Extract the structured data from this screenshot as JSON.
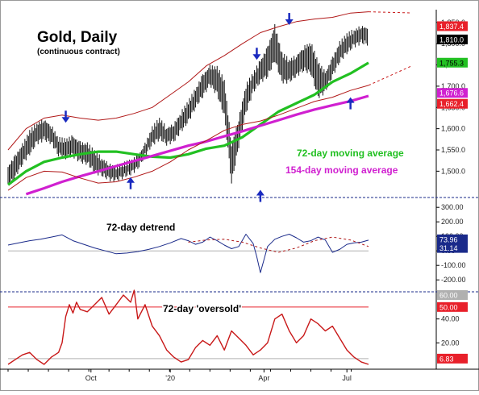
{
  "chart_data": [
    {
      "type": "line",
      "panel": "price",
      "title": "Gold, Daily",
      "subtitle": "(continuous contract)",
      "xlabel": "",
      "ylabel": "",
      "x_tick_labels": [
        "Oct",
        "'20",
        "Apr",
        "Jul"
      ],
      "y_ticks": [
        1500,
        1550,
        1600,
        1650,
        1700,
        1750,
        1800,
        1850
      ],
      "y_tick_labels": [
        "1,500.0",
        "1,550.0",
        "1,600.0",
        "1,650.0",
        "1,700.0",
        "1,750.0",
        "1,800.0",
        "1,850.0"
      ],
      "ylim": [
        1440,
        1880
      ],
      "grid": false,
      "value_badges": [
        {
          "text": "1,837.4",
          "value": 1837.4,
          "color": "#e8202a"
        },
        {
          "text": "1,810.0",
          "value": 1810.0,
          "color": "#000000"
        },
        {
          "text": "1,755.3",
          "value": 1755.3,
          "color": "#22c022"
        },
        {
          "text": "1,676.6",
          "value": 1676.6,
          "color": "#d020d0"
        },
        {
          "text": "1,662.4",
          "value": 1662.4,
          "color": "#e8202a"
        }
      ],
      "annotations": [
        {
          "text": "72-day moving average",
          "color": "#22c022"
        },
        {
          "text": "154-day moving average",
          "color": "#d020d0"
        }
      ],
      "series": [
        {
          "name": "72-day moving average",
          "color": "#22c022",
          "x": [
            0,
            5,
            10,
            15,
            20,
            25,
            30,
            35,
            40,
            45,
            50,
            55,
            60,
            65,
            70,
            75,
            80,
            85,
            90,
            95,
            100
          ],
          "values": [
            1468,
            1500,
            1522,
            1532,
            1540,
            1546,
            1546,
            1540,
            1534,
            1532,
            1540,
            1553,
            1560,
            1580,
            1610,
            1640,
            1660,
            1680,
            1710,
            1730,
            1755
          ]
        },
        {
          "name": "154-day moving average",
          "color": "#d020d0",
          "x": [
            5,
            10,
            15,
            20,
            25,
            30,
            35,
            40,
            45,
            50,
            55,
            60,
            65,
            70,
            75,
            80,
            85,
            90,
            95,
            100
          ],
          "values": [
            1446,
            1460,
            1475,
            1488,
            1500,
            1512,
            1524,
            1536,
            1548,
            1560,
            1570,
            1582,
            1594,
            1607,
            1620,
            1633,
            1645,
            1655,
            1665,
            1677
          ]
        },
        {
          "name": "Upper band",
          "color": "#b01818",
          "x": [
            0,
            5,
            10,
            15,
            20,
            25,
            30,
            35,
            40,
            45,
            50,
            55,
            60,
            65,
            70,
            75,
            80,
            85,
            90,
            95,
            100
          ],
          "values": [
            1550,
            1600,
            1625,
            1632,
            1625,
            1620,
            1625,
            1636,
            1650,
            1680,
            1710,
            1748,
            1772,
            1800,
            1826,
            1840,
            1852,
            1858,
            1862,
            1872,
            1875
          ]
        },
        {
          "name": "Lower band",
          "color": "#b01818",
          "x": [
            0,
            5,
            10,
            15,
            20,
            25,
            30,
            35,
            40,
            45,
            50,
            55,
            60,
            65,
            70,
            75,
            80,
            85,
            90,
            95,
            100
          ],
          "values": [
            1455,
            1485,
            1500,
            1498,
            1484,
            1472,
            1475,
            1486,
            1500,
            1522,
            1550,
            1572,
            1596,
            1610,
            1618,
            1632,
            1648,
            1664,
            1674,
            1690,
            1702
          ]
        }
      ],
      "price_hl": {
        "x": [
          0,
          2,
          4,
          6,
          8,
          10,
          12,
          14,
          16,
          18,
          20,
          22,
          24,
          26,
          28,
          30,
          32,
          34,
          36,
          38,
          40,
          42,
          44,
          46,
          48,
          50,
          52,
          54,
          56,
          58,
          60,
          62,
          64,
          66,
          68,
          70,
          72,
          74,
          76,
          78,
          80,
          82,
          84,
          86,
          88,
          90,
          92,
          94,
          96,
          98,
          100
        ],
        "high": [
          1510,
          1535,
          1560,
          1592,
          1610,
          1620,
          1605,
          1575,
          1572,
          1580,
          1566,
          1562,
          1545,
          1528,
          1516,
          1510,
          1516,
          1522,
          1535,
          1562,
          1600,
          1622,
          1600,
          1610,
          1636,
          1662,
          1690,
          1725,
          1745,
          1742,
          1712,
          1560,
          1622,
          1700,
          1728,
          1758,
          1790,
          1840,
          1775,
          1760,
          1770,
          1790,
          1800,
          1755,
          1730,
          1765,
          1800,
          1820,
          1830,
          1840,
          1835
        ],
        "low": [
          1465,
          1488,
          1520,
          1542,
          1568,
          1576,
          1568,
          1540,
          1532,
          1538,
          1524,
          1520,
          1500,
          1492,
          1482,
          1480,
          1488,
          1496,
          1508,
          1538,
          1564,
          1578,
          1566,
          1572,
          1596,
          1618,
          1652,
          1678,
          1705,
          1682,
          1632,
          1474,
          1560,
          1640,
          1688,
          1712,
          1725,
          1762,
          1712,
          1712,
          1726,
          1740,
          1732,
          1676,
          1688,
          1726,
          1760,
          1780,
          1796,
          1804,
          1800
        ]
      },
      "arrows": [
        {
          "direction": "down",
          "x": 16,
          "value": 1612
        },
        {
          "direction": "up",
          "x": 34,
          "value": 1488
        },
        {
          "direction": "down",
          "x": 69,
          "value": 1760
        },
        {
          "direction": "up",
          "x": 70,
          "value": 1458
        },
        {
          "direction": "down",
          "x": 78,
          "value": 1842
        },
        {
          "direction": "up",
          "x": 95,
          "value": 1676
        }
      ]
    },
    {
      "type": "line",
      "panel": "detrend",
      "title": "72-day detrend",
      "y_ticks": [
        -200,
        -100,
        0,
        100,
        200,
        300
      ],
      "y_tick_labels": [
        "-200.00",
        "-100.00",
        "0.00",
        "100.00",
        "200.00",
        "300.00"
      ],
      "ylim": [
        -260,
        340
      ],
      "grid": false,
      "value_badges": [
        {
          "text": "73.96",
          "value": 73.96,
          "color": "#1a2a8a"
        },
        {
          "text": "31.14",
          "value": 31.14,
          "color": "#1a2a8a"
        }
      ],
      "series": [
        {
          "name": "72-day detrend",
          "color": "#1a2a8a",
          "x": [
            0,
            3,
            6,
            9,
            12,
            15,
            18,
            21,
            24,
            27,
            30,
            33,
            36,
            39,
            42,
            45,
            48,
            50,
            52,
            54,
            56,
            58,
            60,
            62,
            64,
            66,
            68,
            69,
            70,
            71,
            72,
            74,
            76,
            78,
            80,
            82,
            84,
            86,
            88,
            90,
            92,
            94,
            96,
            98,
            100
          ],
          "values": [
            40,
            55,
            70,
            80,
            95,
            110,
            70,
            45,
            20,
            0,
            -20,
            -15,
            -5,
            10,
            30,
            55,
            85,
            70,
            45,
            60,
            95,
            70,
            40,
            15,
            30,
            115,
            50,
            -40,
            -150,
            -60,
            30,
            80,
            100,
            115,
            90,
            60,
            70,
            95,
            75,
            -10,
            10,
            45,
            55,
            60,
            74
          ]
        },
        {
          "name": "Projection",
          "color": "#b01818",
          "x": [
            50,
            55,
            60,
            65,
            70,
            75,
            80,
            85,
            90,
            95,
            100
          ],
          "values": [
            60,
            75,
            80,
            60,
            20,
            -10,
            20,
            70,
            95,
            75,
            30
          ]
        }
      ]
    },
    {
      "type": "line",
      "panel": "oscillator",
      "title": "72-day 'oversold'",
      "y_ticks": [
        20,
        40
      ],
      "y_tick_labels": [
        "20.00",
        "40.00"
      ],
      "ylim": [
        0,
        60
      ],
      "grid": false,
      "value_badges": [
        {
          "text": "60.00",
          "value": 60.0,
          "color": "#b0b0b0"
        },
        {
          "text": "50.00",
          "value": 50.0,
          "color": "#e8202a"
        },
        {
          "text": "6.83",
          "value": 6.83,
          "color": "#e8202a"
        }
      ],
      "series": [
        {
          "name": "Oscillator",
          "color": "#c81818",
          "x": [
            0,
            2,
            4,
            6,
            8,
            10,
            12,
            14,
            15,
            16,
            17,
            18,
            19,
            20,
            22,
            24,
            26,
            28,
            30,
            32,
            34,
            35,
            36,
            38,
            40,
            42,
            44,
            46,
            48,
            50,
            52,
            54,
            56,
            58,
            60,
            62,
            64,
            66,
            68,
            70,
            72,
            74,
            76,
            78,
            80,
            82,
            84,
            86,
            88,
            90,
            92,
            94,
            96,
            98,
            100
          ],
          "values": [
            2,
            6,
            10,
            12,
            6,
            2,
            8,
            12,
            20,
            42,
            52,
            45,
            54,
            48,
            46,
            52,
            58,
            44,
            52,
            60,
            54,
            64,
            40,
            52,
            34,
            26,
            14,
            8,
            4,
            6,
            16,
            22,
            18,
            26,
            14,
            30,
            24,
            18,
            10,
            14,
            20,
            40,
            44,
            30,
            20,
            26,
            40,
            36,
            30,
            34,
            24,
            14,
            8,
            4,
            2
          ]
        }
      ],
      "reference_lines": [
        {
          "value": 50,
          "color": "#e8202a"
        },
        {
          "value": 6.83,
          "color": "#b0b0b0"
        }
      ]
    }
  ]
}
